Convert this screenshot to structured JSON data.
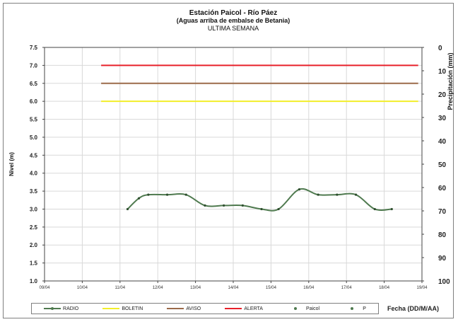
{
  "chart_data": {
    "type": "line",
    "title": "Estación Paicol  - Río Páez",
    "subtitle": "(Aguas arriba de embalse de Betania)",
    "subtitle2": "ULTIMA SEMANA",
    "ylabel": "Nivel  (m)",
    "y2label": "Precipitación (mm)",
    "xlabel": "Fecha  (DD/M/AA)",
    "ylim": [
      1.0,
      7.5
    ],
    "y2lim": [
      0,
      100
    ],
    "y2_inverted": true,
    "grid": true,
    "yticks": [
      "7.5",
      "7.0",
      "6.5",
      "6.0",
      "5.5",
      "5.0",
      "4.5",
      "4.0",
      "3.5",
      "3.0",
      "2.5",
      "2.0",
      "1.5",
      "1.0"
    ],
    "y2ticks": [
      "0",
      "10",
      "20",
      "30",
      "40",
      "50",
      "60",
      "70",
      "80",
      "90",
      "100"
    ],
    "xticks": [
      "09/04",
      "10/04",
      "11/04",
      "12/04",
      "13/04",
      "14/04",
      "15/04",
      "16/04",
      "17/04",
      "18/04",
      "19/04"
    ],
    "thresholds": [
      {
        "name": "ALERTA",
        "value": 7.0,
        "color": "#e8202a",
        "x_start": 10.5,
        "x_end": 18.9
      },
      {
        "name": "AVISO",
        "value": 6.5,
        "color": "#9b6b4a",
        "x_start": 10.5,
        "x_end": 18.9
      },
      {
        "name": "BOLETIN",
        "value": 6.0,
        "color": "#f2ee2a",
        "x_start": 10.5,
        "x_end": 18.9
      }
    ],
    "series": [
      {
        "name": "RADIO",
        "color": "#4f7a4f",
        "x": [
          11.2,
          11.5,
          11.75,
          12.25,
          12.75,
          13.25,
          13.75,
          14.25,
          14.75,
          15.2,
          15.75,
          16.25,
          16.75,
          17.25,
          17.75,
          18.2
        ],
        "y": [
          3.0,
          3.3,
          3.4,
          3.4,
          3.4,
          3.1,
          3.1,
          3.1,
          3.0,
          3.0,
          3.55,
          3.4,
          3.4,
          3.4,
          3.0,
          3.0
        ]
      }
    ],
    "legend": [
      {
        "label": "RADIO",
        "color": "#4f7a4f",
        "marker": true
      },
      {
        "label": "BOLETIN",
        "color": "#f2ee2a",
        "marker": false
      },
      {
        "label": "AVISO",
        "color": "#9b6b4a",
        "marker": false
      },
      {
        "label": "ALERTA",
        "color": "#e8202a",
        "marker": false
      },
      {
        "label": "Paicol",
        "color": "#4f7a4f",
        "marker": true,
        "no_line": true
      },
      {
        "label": "P",
        "color": "#4f7a4f",
        "marker": true,
        "no_line": true
      }
    ]
  }
}
